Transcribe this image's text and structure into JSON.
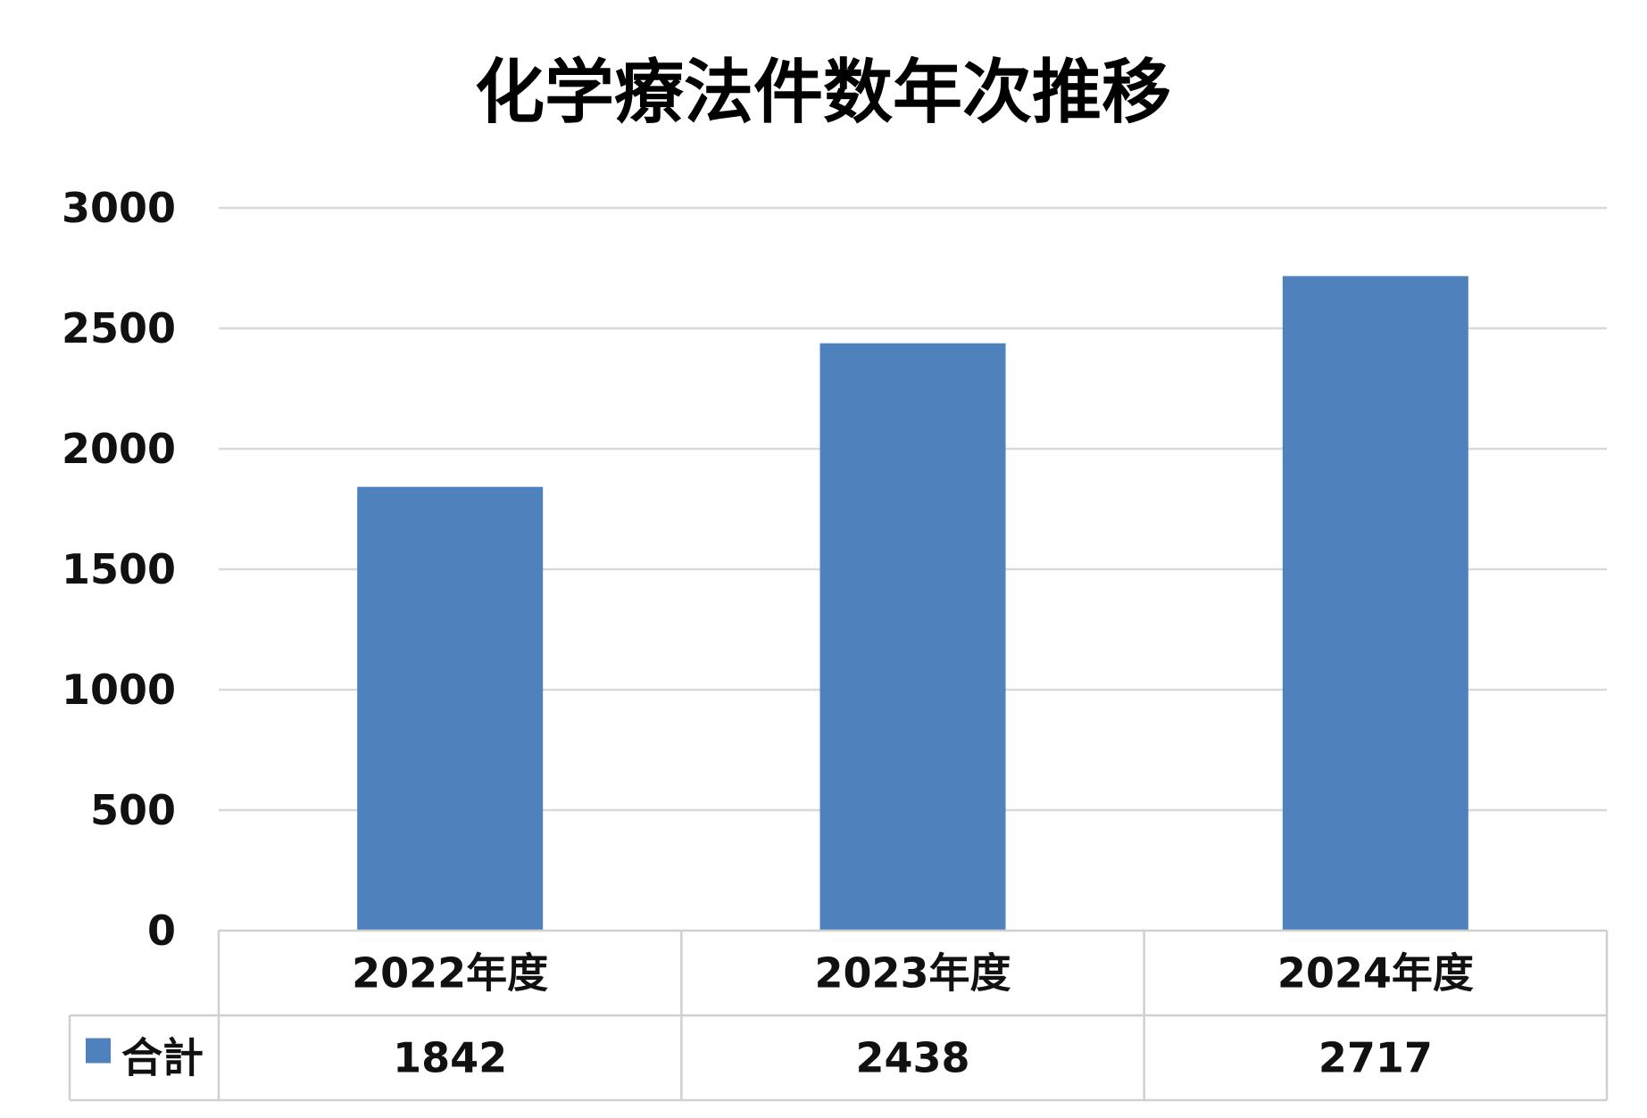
{
  "chart_data": {
    "type": "bar",
    "title": "化学療法件数年次推移",
    "xlabel": "",
    "ylabel": "",
    "categories": [
      "2022年度",
      "2023年度",
      "2024年度"
    ],
    "series": [
      {
        "name": "合計",
        "values": [
          1842,
          2438,
          2717
        ],
        "color": "#4f81bd"
      }
    ],
    "ylim": [
      0,
      3000
    ],
    "yticks": [
      0,
      500,
      1000,
      1500,
      2000,
      2500,
      3000
    ],
    "grid": true,
    "legend": "data-table",
    "data_table": true
  }
}
